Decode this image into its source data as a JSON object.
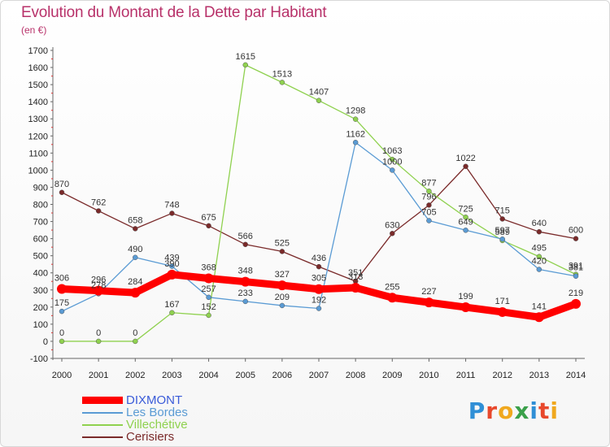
{
  "title": "Evolution du Montant de la Dette par Habitant",
  "subtitle": "(en €)",
  "brand": "Proxiti",
  "chart_data": {
    "type": "line",
    "title": "Evolution du Montant de la Dette par Habitant",
    "ylabel": "(en €)",
    "ylim": [
      -100,
      1700
    ],
    "yticks": [
      -100,
      0,
      100,
      200,
      300,
      400,
      500,
      600,
      700,
      800,
      900,
      1000,
      1100,
      1200,
      1300,
      1400,
      1500,
      1600,
      1700
    ],
    "grid": false,
    "legend": "bottom-left",
    "x": [
      "2000",
      "2001",
      "2002",
      "2003",
      "2004",
      "2005",
      "2006",
      "2007",
      "2008",
      "2009",
      "2010",
      "2011",
      "2012",
      "2013",
      "2014"
    ],
    "series": [
      {
        "name": "DIXMONT",
        "color": "#ff0000",
        "values": [
          306,
          296,
          284,
          390,
          368,
          348,
          327,
          305,
          313,
          255,
          227,
          199,
          171,
          141,
          219
        ]
      },
      {
        "name": "Les Bordes",
        "color": "#5a9bd4",
        "values": [
          175,
          278,
          490,
          439,
          257,
          233,
          209,
          192,
          1162,
          1000,
          705,
          649,
          597,
          420,
          381
        ]
      },
      {
        "name": "Villechétive",
        "color": "#8fd14f",
        "values": [
          0,
          0,
          0,
          167,
          152,
          1615,
          1513,
          1407,
          1298,
          1063,
          877,
          725,
          589,
          495,
          391
        ]
      },
      {
        "name": "Cerisiers",
        "color": "#7a2a2a",
        "values": [
          870,
          762,
          658,
          748,
          675,
          566,
          525,
          436,
          351,
          630,
          796,
          1022,
          715,
          640,
          600
        ]
      }
    ]
  }
}
